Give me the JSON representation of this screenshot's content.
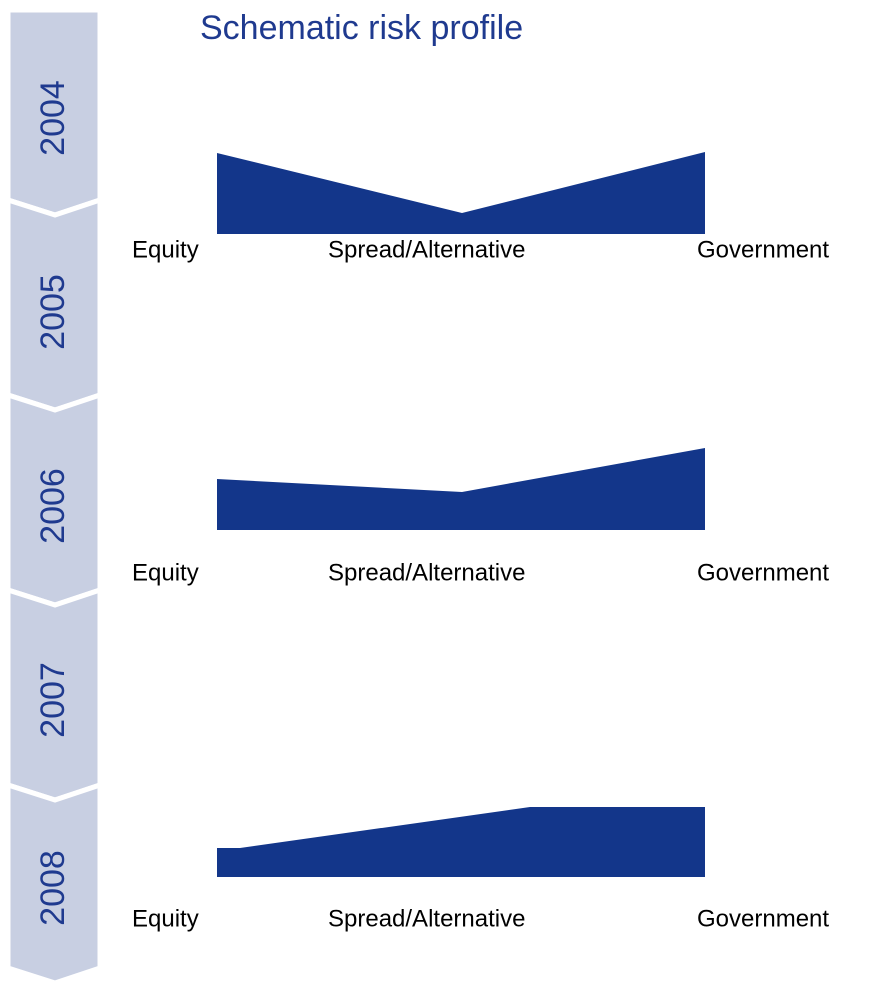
{
  "title": "Schematic risk profile",
  "timeline": [
    "2004",
    "2005",
    "2006",
    "2007",
    "2008"
  ],
  "profiles": [
    {
      "labels": [
        "Equity",
        "Spread/Alternative",
        "Government"
      ]
    },
    {
      "labels": [
        "Equity",
        "Spread/Alternative",
        "Government"
      ]
    },
    {
      "labels": [
        "Equity",
        "Spread/Alternative",
        "Government"
      ]
    }
  ]
}
